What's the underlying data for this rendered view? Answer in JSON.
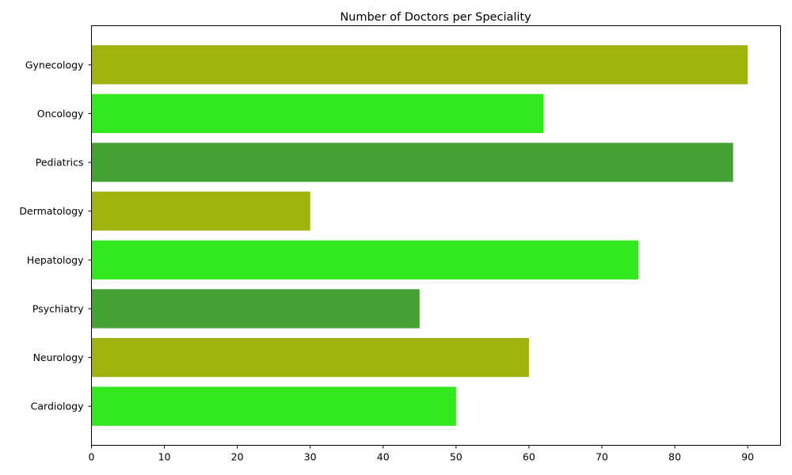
{
  "chart_data": {
    "type": "bar",
    "orientation": "horizontal",
    "title": "Number of Doctors per Speciality",
    "xlabel": "",
    "ylabel": "",
    "categories": [
      "Cardiology",
      "Neurology",
      "Psychiatry",
      "Hepatology",
      "Dermatology",
      "Pediatrics",
      "Oncology",
      "Gynecology"
    ],
    "values": [
      50,
      60,
      45,
      75,
      30,
      88,
      62,
      90
    ],
    "bar_colors": [
      "#33e81e",
      "#a0b30f",
      "#43a233",
      "#33e81e",
      "#a0b30f",
      "#43a233",
      "#33e81e",
      "#a0b30f"
    ],
    "xlim": [
      0,
      94.5
    ],
    "xticks": [
      0,
      10,
      20,
      30,
      40,
      50,
      60,
      70,
      80,
      90
    ],
    "grid": false,
    "legend": "none"
  }
}
